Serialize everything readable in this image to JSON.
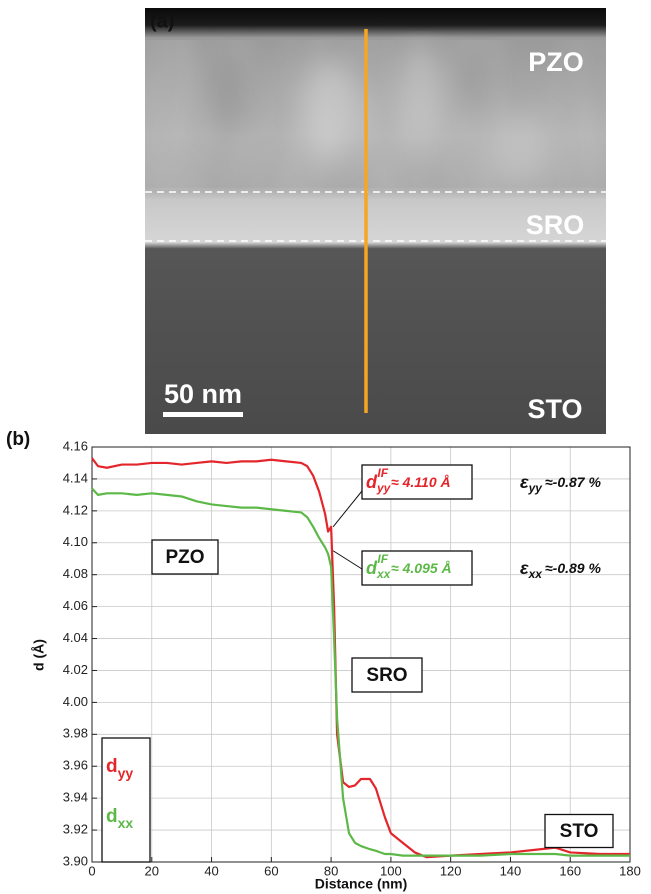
{
  "panel_a": {
    "label": "(a)",
    "layers": [
      "PZO",
      "SRO",
      "STO"
    ],
    "scale_bar": "50 nm"
  },
  "chart_data": {
    "type": "line",
    "panel_label": "(b)",
    "x_label": "Distance (nm)",
    "y_label": "d (Å)",
    "x": [
      0,
      2,
      5,
      10,
      15,
      20,
      25,
      30,
      35,
      40,
      45,
      50,
      55,
      60,
      65,
      70,
      72,
      74,
      76,
      78,
      79,
      80,
      81,
      82,
      84,
      86,
      88,
      90,
      93,
      95,
      98,
      100,
      104,
      108,
      112,
      120,
      130,
      140,
      150,
      155,
      160,
      170,
      180
    ],
    "xlim": [
      0,
      180
    ],
    "xticks": [
      0,
      20,
      40,
      60,
      80,
      100,
      120,
      140,
      160,
      180
    ],
    "ylim": [
      3.9,
      4.16
    ],
    "yticks": [
      {
        "value": 3.9,
        "label": "3.90"
      },
      3.92,
      3.94,
      3.96,
      3.98,
      {
        "value": 4.0,
        "label": "4.00"
      },
      4.02,
      4.04,
      4.06,
      4.08,
      {
        "value": 4.1,
        "label": "4.10"
      },
      4.12,
      4.14,
      4.16
    ],
    "grid": true,
    "series": [
      {
        "name": "dyy",
        "color": "#e3262b",
        "values": [
          4.153,
          4.148,
          4.147,
          4.149,
          4.149,
          4.15,
          4.15,
          4.149,
          4.15,
          4.151,
          4.15,
          4.151,
          4.151,
          4.152,
          4.151,
          4.15,
          4.148,
          4.142,
          4.132,
          4.118,
          4.107,
          4.11,
          4.06,
          3.98,
          3.95,
          3.947,
          3.948,
          3.952,
          3.952,
          3.946,
          3.928,
          3.918,
          3.912,
          3.906,
          3.903,
          3.904,
          3.905,
          3.906,
          3.908,
          3.909,
          3.906,
          3.905,
          3.905
        ]
      },
      {
        "name": "dxx",
        "color": "#5cb947",
        "values": [
          4.134,
          4.13,
          4.131,
          4.131,
          4.13,
          4.131,
          4.13,
          4.129,
          4.126,
          4.124,
          4.123,
          4.122,
          4.122,
          4.121,
          4.12,
          4.119,
          4.116,
          4.11,
          4.103,
          4.097,
          4.093,
          4.085,
          4.04,
          3.99,
          3.94,
          3.918,
          3.912,
          3.91,
          3.908,
          3.907,
          3.905,
          3.905,
          3.904,
          3.904,
          3.904,
          3.904,
          3.904,
          3.905,
          3.905,
          3.905,
          3.904,
          3.904,
          3.904
        ]
      }
    ],
    "region_labels": [
      "PZO",
      "SRO",
      "STO"
    ],
    "annotations": [
      {
        "symbol": "d",
        "sub": "yy",
        "sup": "IF",
        "text": "≈ 4.110 Å",
        "color": "#e3262b"
      },
      {
        "symbol": "d",
        "sub": "xx",
        "sup": "IF",
        "text": "≈ 4.095 Å",
        "color": "#5cb947"
      },
      {
        "symbol": "ε",
        "sub": "yy",
        "text": "≈-0.87 %",
        "color": "#111111"
      },
      {
        "symbol": "ε",
        "sub": "xx",
        "text": "≈-0.89 %",
        "color": "#111111"
      }
    ]
  }
}
